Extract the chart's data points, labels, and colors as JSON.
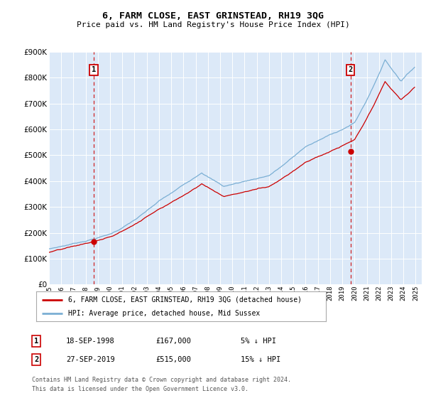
{
  "title": "6, FARM CLOSE, EAST GRINSTEAD, RH19 3QG",
  "subtitle": "Price paid vs. HM Land Registry's House Price Index (HPI)",
  "sale1_date": "18-SEP-1998",
  "sale1_price": 167000,
  "sale1_label": "5% ↓ HPI",
  "sale2_date": "27-SEP-2019",
  "sale2_price": 515000,
  "sale2_label": "15% ↓ HPI",
  "legend_line1": "6, FARM CLOSE, EAST GRINSTEAD, RH19 3QG (detached house)",
  "legend_line2": "HPI: Average price, detached house, Mid Sussex",
  "footer1": "Contains HM Land Registry data © Crown copyright and database right 2024.",
  "footer2": "This data is licensed under the Open Government Licence v3.0.",
  "bg_color": "#dce9f8",
  "red_color": "#cc0000",
  "blue_color": "#7bafd4",
  "grid_color": "#b8cfe8",
  "ylim_max": 900000
}
